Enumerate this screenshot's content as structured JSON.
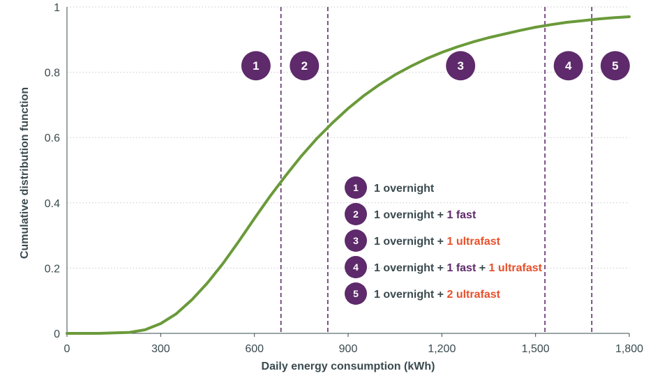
{
  "chart_data": {
    "type": "line",
    "xlabel": "Daily energy consumption (kWh)",
    "ylabel": "Cumulative distribution function",
    "xlim": [
      0,
      1800
    ],
    "ylim": [
      0,
      1
    ],
    "x_ticks": [
      {
        "value": 0,
        "label": "0"
      },
      {
        "value": 300,
        "label": "300"
      },
      {
        "value": 600,
        "label": "600"
      },
      {
        "value": 900,
        "label": "900"
      },
      {
        "value": 1200,
        "label": "1,200"
      },
      {
        "value": 1500,
        "label": "1,500"
      },
      {
        "value": 1800,
        "label": "1,800"
      }
    ],
    "y_ticks": [
      {
        "value": 0,
        "label": "0"
      },
      {
        "value": 0.2,
        "label": "0.2"
      },
      {
        "value": 0.4,
        "label": "0.4"
      },
      {
        "value": 0.6,
        "label": "0.6"
      },
      {
        "value": 0.8,
        "label": "0.8"
      },
      {
        "value": 1,
        "label": "1"
      }
    ],
    "grid": "horizontal-dotted",
    "series": [
      {
        "color": "#6a9a3a",
        "x": [
          0,
          100,
          200,
          250,
          300,
          350,
          400,
          450,
          500,
          550,
          600,
          650,
          700,
          750,
          800,
          850,
          900,
          950,
          1000,
          1050,
          1100,
          1150,
          1200,
          1250,
          1300,
          1350,
          1400,
          1450,
          1500,
          1550,
          1600,
          1650,
          1700,
          1750,
          1800
        ],
        "y": [
          0,
          0,
          0.003,
          0.011,
          0.03,
          0.06,
          0.103,
          0.155,
          0.215,
          0.282,
          0.352,
          0.42,
          0.483,
          0.543,
          0.597,
          0.645,
          0.689,
          0.728,
          0.762,
          0.792,
          0.818,
          0.841,
          0.861,
          0.878,
          0.893,
          0.906,
          0.917,
          0.928,
          0.938,
          0.946,
          0.953,
          0.958,
          0.963,
          0.967,
          0.97
        ]
      }
    ],
    "thresholds": [
      {
        "x": 685,
        "color": "#5e2a6b"
      },
      {
        "x": 835,
        "color": "#5e2a6b"
      },
      {
        "x": 1530,
        "color": "#5e2a6b"
      },
      {
        "x": 1680,
        "color": "#5e2a6b"
      }
    ],
    "zones": [
      {
        "label": "1",
        "x": 605,
        "y": 0.82
      },
      {
        "label": "2",
        "x": 760,
        "y": 0.82
      },
      {
        "label": "3",
        "x": 1260,
        "y": 0.82
      },
      {
        "label": "4",
        "x": 1605,
        "y": 0.82
      },
      {
        "label": "5",
        "x": 1755,
        "y": 0.82
      }
    ],
    "legend_position": "center-right",
    "legend": [
      {
        "num": "1",
        "parts": [
          {
            "text": "1 overnight",
            "color": "#3a4a4f"
          }
        ]
      },
      {
        "num": "2",
        "parts": [
          {
            "text": "1 overnight + ",
            "color": "#3a4a4f"
          },
          {
            "text": "1 fast",
            "color": "#5e2a6b"
          }
        ]
      },
      {
        "num": "3",
        "parts": [
          {
            "text": "1 overnight + ",
            "color": "#3a4a4f"
          },
          {
            "text": "1 ultrafast",
            "color": "#e8502a"
          }
        ]
      },
      {
        "num": "4",
        "parts": [
          {
            "text": "1 overnight + ",
            "color": "#3a4a4f"
          },
          {
            "text": "1 fast",
            "color": "#5e2a6b"
          },
          {
            "text": " + ",
            "color": "#3a4a4f"
          },
          {
            "text": "1 ultrafast",
            "color": "#e8502a"
          }
        ]
      },
      {
        "num": "5",
        "parts": [
          {
            "text": "1 overnight + ",
            "color": "#3a4a4f"
          },
          {
            "text": "2 ultrafast",
            "color": "#e8502a"
          }
        ]
      }
    ],
    "colors": {
      "badge": "#5e2a6b",
      "axis": "#3a4a4f",
      "grid": "#c8c8c8",
      "text": "#3a4a4f"
    }
  }
}
